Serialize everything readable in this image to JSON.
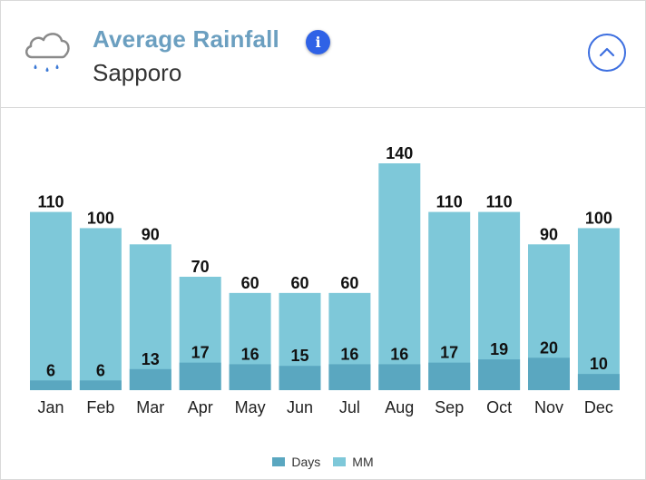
{
  "header": {
    "title": "Average Rainfall",
    "subtitle": "Sapporo",
    "icon": "cloud-rain-icon",
    "info_icon": "info-icon",
    "collapse_icon": "chevron-up-icon",
    "info_glyph": "i"
  },
  "colors": {
    "mm": "#7ec8d9",
    "days": "#5aa7c0",
    "title": "#6b9fc0",
    "accent": "#2f62e6"
  },
  "chart_data": {
    "type": "bar",
    "categories": [
      "Jan",
      "Feb",
      "Mar",
      "Apr",
      "May",
      "Jun",
      "Jul",
      "Aug",
      "Sep",
      "Oct",
      "Nov",
      "Dec"
    ],
    "series": [
      {
        "name": "MM",
        "values": [
          110,
          100,
          90,
          70,
          60,
          60,
          60,
          140,
          110,
          110,
          90,
          100
        ]
      },
      {
        "name": "Days",
        "values": [
          6,
          6,
          13,
          17,
          16,
          15,
          16,
          16,
          17,
          19,
          20,
          10
        ]
      }
    ],
    "legend": [
      "Days",
      "MM"
    ],
    "legend_position": "bottom",
    "grid": false,
    "ylim": [
      0,
      150
    ]
  }
}
